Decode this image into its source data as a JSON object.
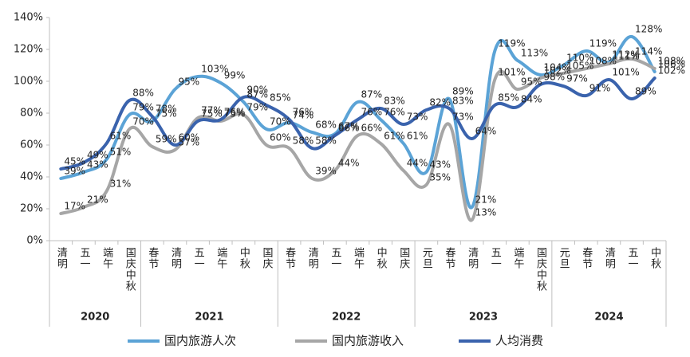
{
  "chart_data": {
    "type": "line",
    "groups": [
      {
        "name": "2020",
        "categories": [
          "清明",
          "五一",
          "端午",
          "国庆中秋"
        ]
      },
      {
        "name": "2021",
        "categories": [
          "春节",
          "清明",
          "五一",
          "端午",
          "中秋",
          "国庆"
        ]
      },
      {
        "name": "2022",
        "categories": [
          "春节",
          "清明",
          "五一",
          "端午",
          "中秋",
          "国庆"
        ]
      },
      {
        "name": "2023",
        "categories": [
          "元旦",
          "春节",
          "清明",
          "五一",
          "端午",
          "国庆中秋"
        ]
      },
      {
        "name": "2024",
        "categories": [
          "元旦",
          "春节",
          "清明",
          "五一",
          "中秋"
        ]
      }
    ],
    "series": [
      {
        "name": "国内旅游人次",
        "color": "#5ba3d6",
        "values": [
          39,
          43,
          51,
          79,
          75,
          95,
          103,
          99,
          87,
          70,
          74,
          68,
          67,
          87,
          76,
          61,
          43,
          89,
          21,
          119,
          113,
          104,
          110,
          119,
          112,
          128,
          106
        ],
        "value_labels": [
          "39%",
          "43%",
          "51%",
          "79%",
          "75%",
          "95%",
          "103%",
          "99%",
          "87%",
          "70%",
          "74%",
          "68%",
          "67%",
          "87%",
          "76%",
          "61%",
          "43%",
          "89%",
          "21%",
          "119%",
          "113%",
          "104%",
          "110%",
          "119%",
          "112%",
          "128%",
          "106%"
        ]
      },
      {
        "name": "国内旅游收入",
        "color": "#a6a6a6",
        "values": [
          17,
          21,
          31,
          70,
          59,
          57,
          77,
          75,
          79,
          60,
          58,
          39,
          44,
          66,
          61,
          44,
          35,
          73,
          13,
          101,
          95,
          102,
          105,
          108,
          111,
          114,
          108
        ],
        "value_labels": [
          "17%",
          "21%",
          "31%",
          "70%",
          "59%",
          "57%",
          "77%",
          "75%",
          "79%",
          "60%",
          "58%",
          "39%",
          "44%",
          "66%",
          "61%",
          "44%",
          "35%",
          "73%",
          "13%",
          "101%",
          "95%",
          "102%",
          "105%",
          "108%",
          "111%",
          "114%",
          "108%"
        ]
      },
      {
        "name": "人均消费",
        "color": "#3a63ad",
        "values": [
          45,
          49,
          61,
          88,
          78,
          60,
          75,
          76,
          90,
          85,
          76,
          58,
          66,
          76,
          83,
          73,
          82,
          83,
          64,
          85,
          84,
          98,
          97,
          91,
          101,
          89,
          102
        ],
        "value_labels": [
          "45%",
          "49%",
          "61%",
          "88%",
          "78%",
          "60%",
          "75%",
          "76%",
          "90%",
          "85%",
          "76%",
          "58%",
          "66%",
          "76%",
          "83%",
          "73%",
          "82%",
          "83%",
          "64%",
          "85%",
          "84%",
          "98%",
          "97%",
          "91%",
          "101%",
          "89%",
          "102%"
        ]
      }
    ],
    "ylim": [
      0,
      140
    ],
    "yticks": [
      {
        "value": 0,
        "label": "0%"
      },
      {
        "value": 20,
        "label": "20%"
      },
      {
        "value": 40,
        "label": "40%"
      },
      {
        "value": 60,
        "label": "60%"
      },
      {
        "value": 80,
        "label": "80%"
      },
      {
        "value": 100,
        "label": "100%"
      },
      {
        "value": 120,
        "label": "120%"
      },
      {
        "value": 140,
        "label": "140%"
      }
    ],
    "legend": "bottom"
  }
}
